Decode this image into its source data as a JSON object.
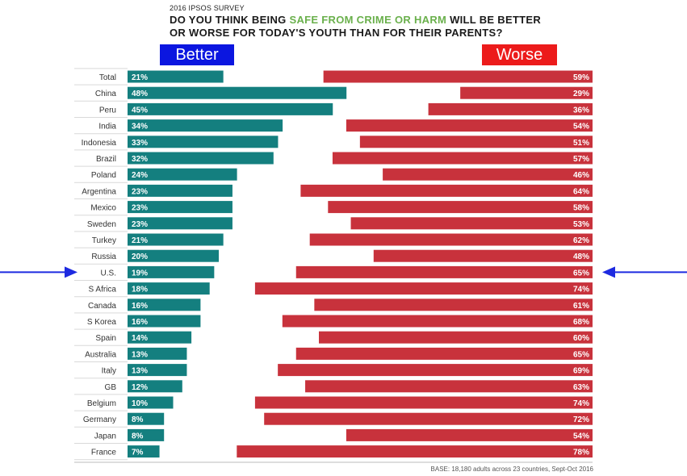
{
  "header": {
    "survey_label": "2016 IPSOS SURVEY",
    "title_line1_pre": "DO YOU THINK BEING ",
    "title_line1_highlight": "SAFE FROM CRIME OR HARM",
    "title_line1_post": " WILL BE BETTER",
    "title_line2": "OR WORSE FOR TODAY'S YOUTH THAN FOR THEIR PARENTS?"
  },
  "legend": {
    "better_label": "Better",
    "worse_label": "Worse"
  },
  "footer": {
    "base_note": "BASE: 18,180 adults across 23 countries, Sept-Oct 2016"
  },
  "colors": {
    "better": "#147f7f",
    "worse": "#c8323c",
    "legend_better": "#0b16e0",
    "legend_worse": "#ec1b1b",
    "arrow": "#1d2ae0",
    "highlight": "#6ab04c"
  },
  "chart_data": {
    "type": "bar",
    "orientation": "horizontal-diverging",
    "categories": [
      "Total",
      "China",
      "Peru",
      "India",
      "Indonesia",
      "Brazil",
      "Poland",
      "Argentina",
      "Mexico",
      "Sweden",
      "Turkey",
      "Russia",
      "U.S.",
      "S Africa",
      "Canada",
      "S Korea",
      "Spain",
      "Australia",
      "Italy",
      "GB",
      "Belgium",
      "Germany",
      "Japan",
      "France"
    ],
    "series": [
      {
        "name": "Better",
        "values": [
          21,
          48,
          45,
          34,
          33,
          32,
          24,
          23,
          23,
          23,
          21,
          20,
          19,
          18,
          16,
          16,
          14,
          13,
          13,
          12,
          10,
          8,
          8,
          7
        ]
      },
      {
        "name": "Worse",
        "values": [
          59,
          29,
          36,
          54,
          51,
          57,
          46,
          64,
          58,
          53,
          62,
          48,
          65,
          74,
          61,
          68,
          60,
          65,
          69,
          63,
          74,
          72,
          54,
          78
        ]
      }
    ],
    "highlighted_category": "U.S.",
    "value_suffix": "%"
  }
}
